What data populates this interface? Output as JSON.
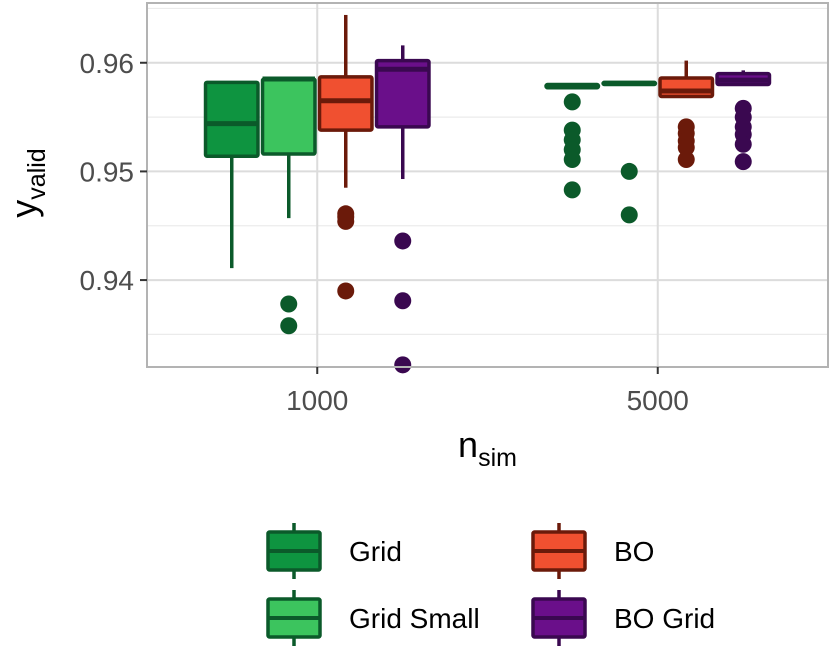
{
  "chart_data": {
    "type": "boxplot",
    "xlabel_main": "n",
    "xlabel_sub": "sim",
    "ylabel_main": "y",
    "ylabel_sub": "valid",
    "categories": [
      "1000",
      "5000"
    ],
    "ylim": [
      0.932,
      0.9655
    ],
    "yticks": [
      0.94,
      0.95,
      0.96
    ],
    "ytick_labels": [
      "0.94",
      "0.95",
      "0.96"
    ],
    "grid": true,
    "legend_position": "bottom",
    "series": [
      {
        "name": "Grid",
        "fill": "#0e9440",
        "line": "#0b5a2a",
        "boxes": [
          {
            "category": "1000",
            "whisker_low": 0.9411,
            "q1": 0.9514,
            "median": 0.9544,
            "q3": 0.9582,
            "whisker_high": 0.9582,
            "outliers": []
          },
          {
            "category": "5000",
            "whisker_low": 0.9577,
            "q1": 0.9577,
            "median": 0.9578,
            "q3": 0.958,
            "whisker_high": 0.958,
            "outliers": [
              0.9564,
              0.9538,
              0.9529,
              0.952,
              0.9511,
              0.9483
            ]
          }
        ]
      },
      {
        "name": "Grid Small",
        "fill": "#3cc45e",
        "line": "#0b5a2a",
        "boxes": [
          {
            "category": "1000",
            "whisker_low": 0.9457,
            "q1": 0.9516,
            "median": 0.9585,
            "q3": 0.9585,
            "whisker_high": 0.9585,
            "outliers": [
              0.9378,
              0.9358
            ]
          },
          {
            "category": "5000",
            "whisker_low": 0.958,
            "q1": 0.958,
            "median": 0.9581,
            "q3": 0.9582,
            "whisker_high": 0.9582,
            "outliers": [
              0.95,
              0.946
            ]
          }
        ]
      },
      {
        "name": "BO",
        "fill": "#f05030",
        "line": "#6b1a0a",
        "boxes": [
          {
            "category": "1000",
            "whisker_low": 0.9485,
            "q1": 0.9538,
            "median": 0.9565,
            "q3": 0.9587,
            "whisker_high": 0.9644,
            "outliers": [
              0.9461,
              0.9458,
              0.9454,
              0.939
            ]
          },
          {
            "category": "5000",
            "whisker_low": 0.9568,
            "q1": 0.9569,
            "median": 0.9574,
            "q3": 0.9586,
            "whisker_high": 0.9602,
            "outliers": [
              0.9541,
              0.9535,
              0.9528,
              0.9522,
              0.9511
            ]
          }
        ]
      },
      {
        "name": "BO Grid",
        "fill": "#6a0f8a",
        "line": "#3a0850",
        "boxes": [
          {
            "category": "1000",
            "whisker_low": 0.9493,
            "q1": 0.9541,
            "median": 0.9594,
            "q3": 0.9602,
            "whisker_high": 0.9616,
            "outliers": [
              0.9436,
              0.9381,
              0.9322
            ]
          },
          {
            "category": "5000",
            "whisker_low": 0.958,
            "q1": 0.958,
            "median": 0.9584,
            "q3": 0.959,
            "whisker_high": 0.9593,
            "outliers": [
              0.9558,
              0.955,
              0.9541,
              0.9534,
              0.9525,
              0.9509
            ]
          }
        ]
      }
    ]
  }
}
